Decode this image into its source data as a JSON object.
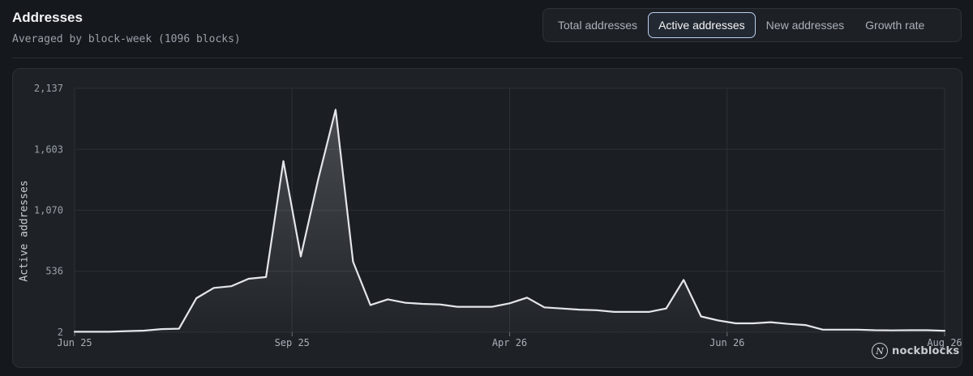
{
  "header": {
    "title": "Addresses",
    "subtitle": "Averaged by block-week (1096 blocks)"
  },
  "tabs": [
    {
      "label": "Total addresses",
      "active": false
    },
    {
      "label": "Active addresses",
      "active": true
    },
    {
      "label": "New addresses",
      "active": false
    },
    {
      "label": "Growth rate",
      "active": false
    }
  ],
  "watermark": {
    "icon": "nockblocks-logo-icon",
    "text": "nockblocks"
  },
  "colors": {
    "line": "#e4e6e9",
    "accent_border": "#b9cdf0",
    "grid": "#2c3137"
  },
  "chart_data": {
    "type": "area",
    "title": "",
    "xlabel": "",
    "ylabel": "Active addresses",
    "ylim": [
      2,
      2137
    ],
    "y_ticks": [
      "2",
      "536",
      "1,070",
      "1,603",
      "2,137"
    ],
    "y_tick_values": [
      2,
      536,
      1070,
      1603,
      2137
    ],
    "x_tick_labels": [
      "Jun 25",
      "Sep 25",
      "Apr 26",
      "Jun 26",
      "Aug 26"
    ],
    "x_tick_index": [
      0,
      12.5,
      25,
      37.5,
      50
    ],
    "grid": true,
    "series": [
      {
        "values": [
          6,
          6,
          6,
          12,
          16,
          30,
          33,
          300,
          390,
          405,
          470,
          485,
          1500,
          665,
          1340,
          1950,
          620,
          240,
          290,
          260,
          250,
          245,
          225,
          225,
          225,
          255,
          305,
          220,
          210,
          200,
          195,
          180,
          180,
          180,
          210,
          460,
          140,
          105,
          80,
          80,
          90,
          75,
          65,
          25,
          25,
          25,
          20,
          18,
          20,
          20,
          15
        ]
      }
    ]
  }
}
